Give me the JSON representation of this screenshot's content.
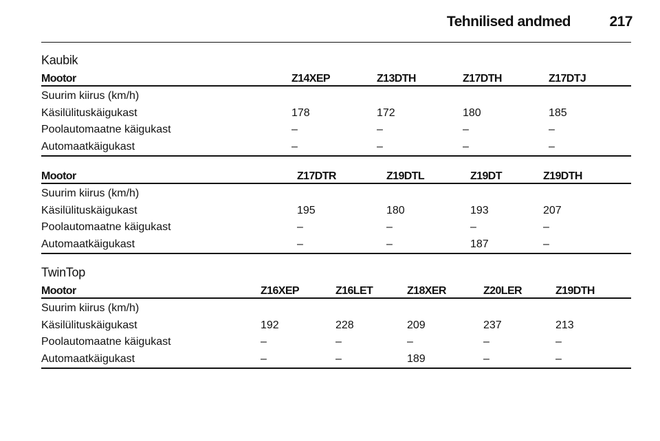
{
  "header": {
    "title": "Tehnilised andmed",
    "page": 217
  },
  "tables": [
    {
      "title": "Kaubik",
      "columns": [
        "Mootor",
        "Z14XEP",
        "Z13DTH",
        "Z17DTH",
        "Z17DTJ"
      ],
      "rows": [
        [
          "Suurim kiirus (km/h)"
        ],
        [
          "Käsilülituskäigukast",
          178,
          172,
          180,
          185
        ],
        [
          "Poolautomaatne käigukast",
          "–",
          "–",
          "–",
          "–"
        ],
        [
          "Automaatkäigukast",
          "–",
          "–",
          "–",
          "–"
        ]
      ]
    },
    {
      "columns": [
        "Mootor",
        "Z17DTR",
        "Z19DTL",
        "Z19DT",
        "Z19DTH"
      ],
      "rows": [
        [
          "Suurim kiirus (km/h)"
        ],
        [
          "Käsilülituskäigukast",
          195,
          180,
          193,
          207
        ],
        [
          "Poolautomaatne käigukast",
          "–",
          "–",
          "–",
          "–"
        ],
        [
          "Automaatkäigukast",
          "–",
          "–",
          187,
          "–"
        ]
      ]
    },
    {
      "title": "TwinTop",
      "columns": [
        "Mootor",
        "Z16XEP",
        "Z16LET",
        "Z18XER",
        "Z20LER",
        "Z19DTH"
      ],
      "rows": [
        [
          "Suurim kiirus (km/h)"
        ],
        [
          "Käsilülituskäigukast",
          192,
          228,
          209,
          237,
          213
        ],
        [
          "Poolautomaatne käigukast",
          "–",
          "–",
          "–",
          "–",
          "–"
        ],
        [
          "Automaatkäigukast",
          "–",
          "–",
          189,
          "–",
          "–"
        ]
      ]
    }
  ]
}
